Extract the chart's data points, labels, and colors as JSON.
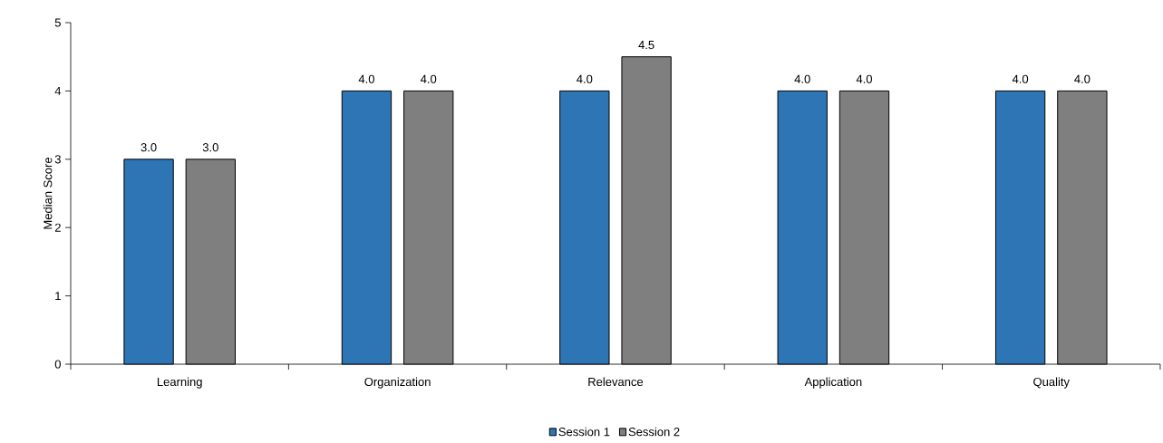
{
  "chart_data": {
    "type": "bar",
    "ylabel": "Median Score",
    "categories": [
      "Learning",
      "Organization",
      "Relevance",
      "Application",
      "Quality"
    ],
    "series": [
      {
        "name": "Session 1",
        "color": "#2e75b6",
        "values": [
          3.0,
          4.0,
          4.0,
          4.0,
          4.0
        ],
        "value_labels": [
          "3.0",
          "4.0",
          "4.0",
          "4.0",
          "4.0"
        ]
      },
      {
        "name": "Session 2",
        "color": "#7f7f7f",
        "values": [
          3.0,
          4.0,
          4.5,
          4.0,
          4.0
        ],
        "value_labels": [
          "3.0",
          "4.0",
          "4.5",
          "4.0",
          "4.0"
        ]
      }
    ],
    "ylim": [
      0,
      5
    ],
    "yticks": [
      0,
      1,
      2,
      3,
      4,
      5
    ],
    "grid": false,
    "legend": "bottom"
  }
}
